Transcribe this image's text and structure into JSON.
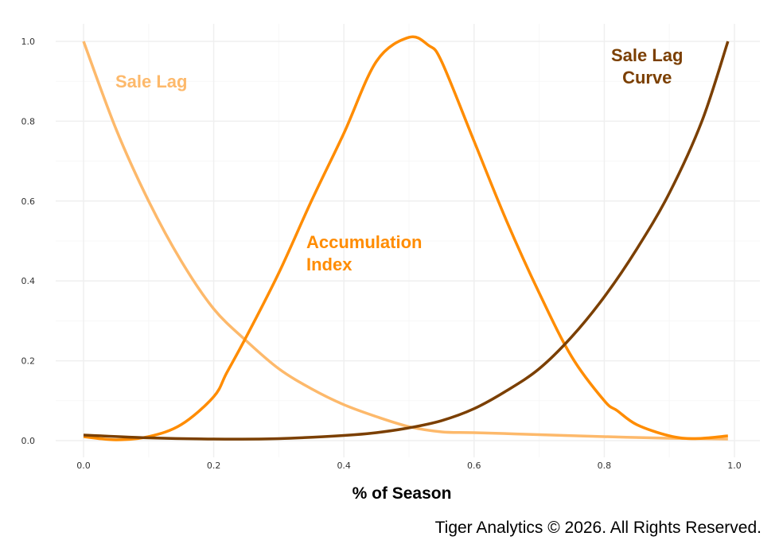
{
  "chart_data": {
    "type": "line",
    "title": "",
    "xlabel": "% of Season",
    "ylabel": "",
    "xlim": [
      0,
      1
    ],
    "ylim": [
      0,
      1
    ],
    "x_ticks": [
      "0.0",
      "0.2",
      "0.4",
      "0.6",
      "0.8",
      "1.0"
    ],
    "y_ticks": [
      "0.0",
      "0.2",
      "0.4",
      "0.6",
      "0.8",
      "1.0"
    ],
    "grid": true,
    "legend": "none (direct labels)",
    "series": [
      {
        "name": "Sale Lag",
        "color": "#FDB96B",
        "x": [
          0,
          0.05,
          0.1,
          0.15,
          0.2,
          0.25,
          0.3,
          0.35,
          0.4,
          0.45,
          0.5,
          0.55,
          0.6,
          0.7,
          0.8,
          0.9,
          0.99
        ],
        "y": [
          1.0,
          0.78,
          0.6,
          0.45,
          0.33,
          0.25,
          0.18,
          0.13,
          0.09,
          0.06,
          0.035,
          0.022,
          0.02,
          0.015,
          0.01,
          0.006,
          0.004
        ]
      },
      {
        "name": "Accumulation Index",
        "color": "#FF8C00",
        "x": [
          0,
          0.05,
          0.1,
          0.15,
          0.2,
          0.22,
          0.25,
          0.3,
          0.35,
          0.4,
          0.45,
          0.5,
          0.53,
          0.55,
          0.6,
          0.65,
          0.7,
          0.75,
          0.8,
          0.82,
          0.85,
          0.9,
          0.94,
          0.99
        ],
        "y": [
          0.01,
          0.002,
          0.01,
          0.04,
          0.11,
          0.17,
          0.26,
          0.42,
          0.6,
          0.77,
          0.95,
          1.01,
          0.99,
          0.95,
          0.75,
          0.55,
          0.37,
          0.21,
          0.1,
          0.075,
          0.04,
          0.012,
          0.005,
          0.012
        ]
      },
      {
        "name": "Sale Lag Curve",
        "color": "#7B3F00",
        "x": [
          0,
          0.1,
          0.2,
          0.3,
          0.4,
          0.45,
          0.5,
          0.55,
          0.6,
          0.65,
          0.7,
          0.75,
          0.8,
          0.85,
          0.9,
          0.95,
          0.99
        ],
        "y": [
          0.014,
          0.007,
          0.004,
          0.005,
          0.013,
          0.02,
          0.032,
          0.05,
          0.08,
          0.125,
          0.18,
          0.26,
          0.36,
          0.48,
          0.62,
          0.8,
          1.0
        ]
      }
    ],
    "labels": {
      "sale_lag": "Sale Lag",
      "accumulation_line1": "Accumulation",
      "accumulation_line2": "Index",
      "sale_lag_curve_line1": "Sale Lag",
      "sale_lag_curve_line2": "Curve"
    }
  },
  "footer": "Tiger Analytics © 2026. All Rights Reserved."
}
